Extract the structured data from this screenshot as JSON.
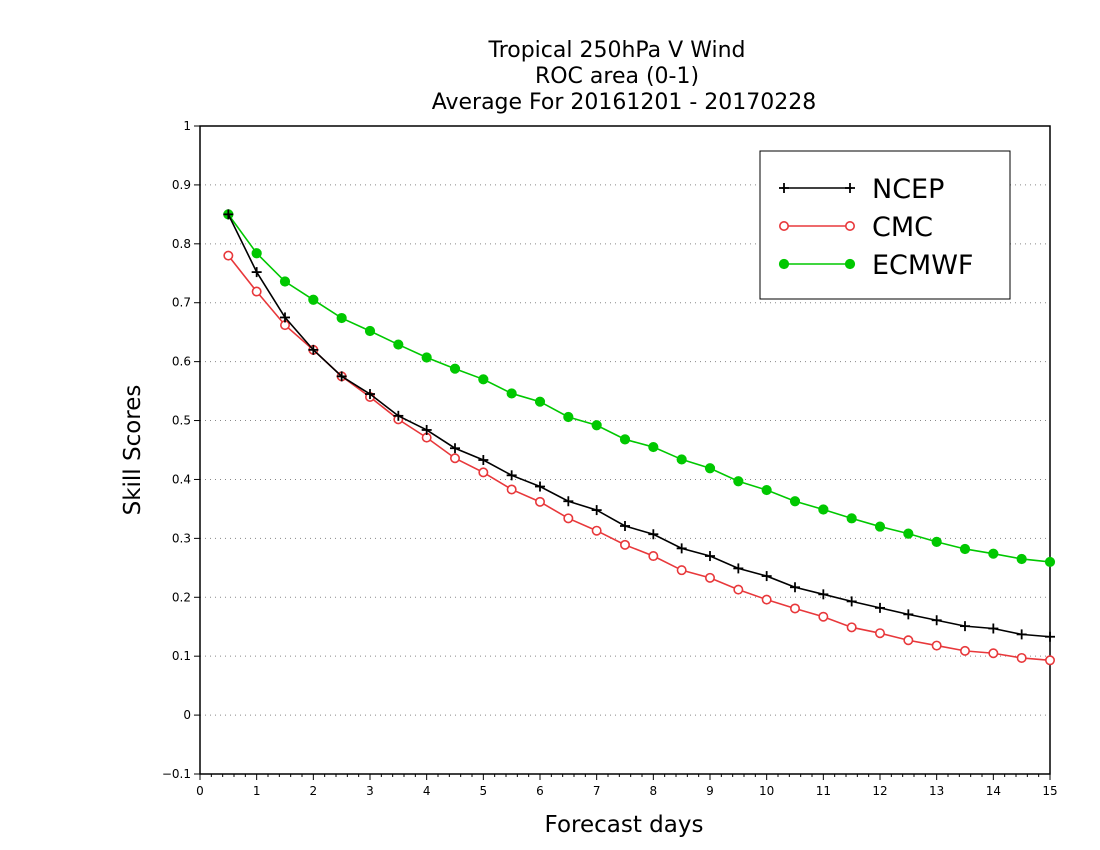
{
  "chart_data": {
    "type": "line",
    "title_lines": [
      "Tropical 250hPa V Wind",
      "ROC area (0-1)",
      "Average For 20161201 - 20170228"
    ],
    "xlabel": "Forecast days",
    "ylabel": "Skill Scores",
    "xlim": [
      0,
      15
    ],
    "ylim": [
      -0.1,
      1
    ],
    "xticks": [
      0,
      1,
      2,
      3,
      4,
      5,
      6,
      7,
      8,
      9,
      10,
      11,
      12,
      13,
      14,
      15
    ],
    "xtick_labels": [
      "0",
      "1",
      "2",
      "3",
      "4",
      "5",
      "6",
      "7",
      "8",
      "9",
      "10",
      "11",
      "12",
      "13",
      "14",
      "15"
    ],
    "yticks": [
      -0.1,
      0,
      0.1,
      0.2,
      0.3,
      0.4,
      0.5,
      0.6,
      0.7,
      0.8,
      0.9,
      1
    ],
    "ytick_labels": [
      "−0.1",
      "0",
      "0.1",
      "0.2",
      "0.3",
      "0.4",
      "0.5",
      "0.6",
      "0.7",
      "0.8",
      "0.9",
      "1"
    ],
    "grid": "horizontal dotted",
    "legend_position": "top-right",
    "x": [
      0.5,
      1,
      1.5,
      2,
      2.5,
      3,
      3.5,
      4,
      4.5,
      5,
      5.5,
      6,
      6.5,
      7,
      7.5,
      8,
      8.5,
      9,
      9.5,
      10,
      10.5,
      11,
      11.5,
      12,
      12.5,
      13,
      13.5,
      14,
      14.5,
      15
    ],
    "series": [
      {
        "name": "NCEP",
        "color": "#000000",
        "marker": "plus",
        "values": [
          0.85,
          0.752,
          0.675,
          0.62,
          0.575,
          0.545,
          0.508,
          0.484,
          0.453,
          0.433,
          0.407,
          0.388,
          0.363,
          0.348,
          0.321,
          0.307,
          0.283,
          0.27,
          0.249,
          0.236,
          0.217,
          0.205,
          0.193,
          0.182,
          0.171,
          0.161,
          0.151,
          0.147,
          0.137,
          0.133
        ]
      },
      {
        "name": "CMC",
        "color": "#e8383b",
        "marker": "open-circle",
        "values": [
          0.78,
          0.719,
          0.662,
          0.62,
          0.575,
          0.54,
          0.502,
          0.471,
          0.436,
          0.412,
          0.383,
          0.362,
          0.334,
          0.313,
          0.289,
          0.27,
          0.246,
          0.233,
          0.213,
          0.196,
          0.181,
          0.167,
          0.149,
          0.139,
          0.127,
          0.118,
          0.109,
          0.105,
          0.097,
          0.093
        ]
      },
      {
        "name": "ECMWF",
        "color": "#00c800",
        "marker": "filled-circle",
        "values": [
          0.85,
          0.784,
          0.736,
          0.705,
          0.674,
          0.652,
          0.629,
          0.607,
          0.588,
          0.57,
          0.546,
          0.532,
          0.506,
          0.492,
          0.468,
          0.455,
          0.434,
          0.419,
          0.397,
          0.382,
          0.363,
          0.349,
          0.334,
          0.32,
          0.308,
          0.294,
          0.282,
          0.274,
          0.265,
          0.26
        ]
      }
    ]
  }
}
